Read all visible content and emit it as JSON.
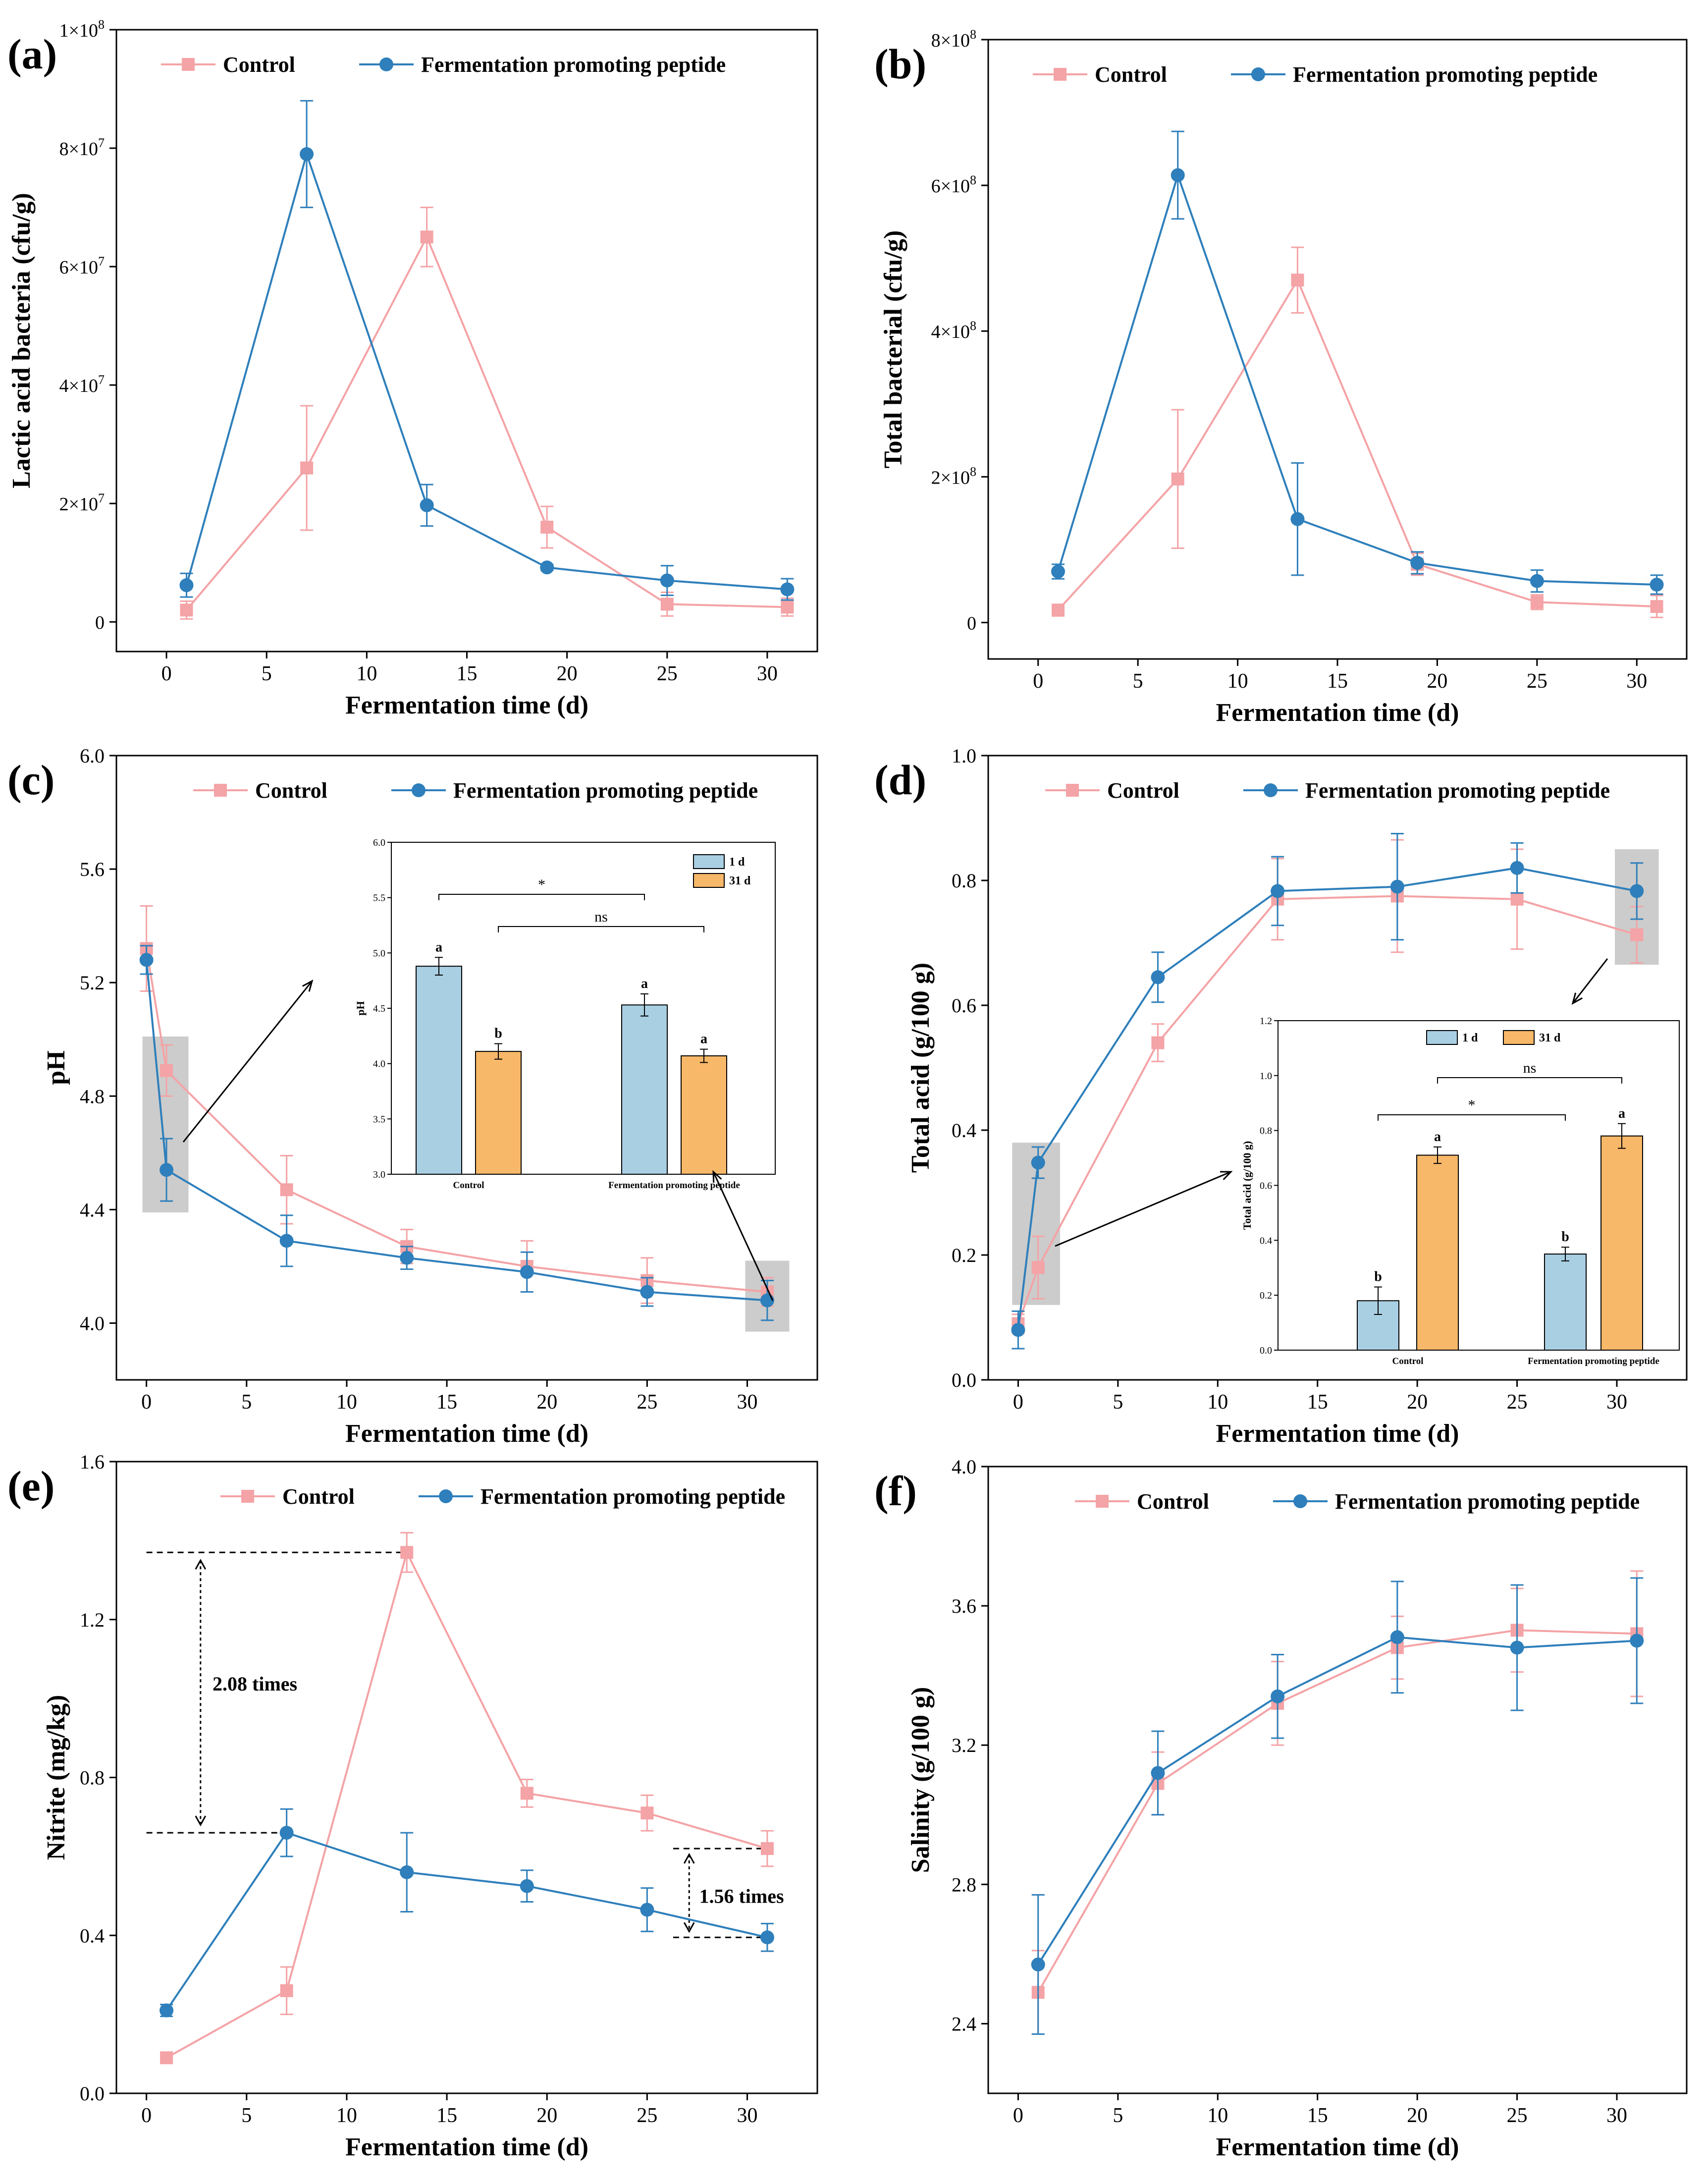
{
  "colors": {
    "control": "#f4a3a6",
    "peptide": "#2e7fbb",
    "inset_bar_1d": "#a9cfe3",
    "inset_bar_31d": "#f8b869",
    "highlight": "#cccccc",
    "axis": "#000000"
  },
  "chart_data": [
    {
      "panel": "(a)",
      "type": "line",
      "title": "",
      "xlabel": "Fermentation time (d)",
      "ylabel": "Lactic acid bacteria (cfu/g)",
      "xlim": [
        -2.5,
        32.5
      ],
      "ylim": [
        -5000000,
        100000000
      ],
      "xticks": [
        0,
        5,
        10,
        15,
        20,
        25,
        30
      ],
      "xtick_labels": [
        "0",
        "5",
        "10",
        "15",
        "20",
        "25",
        "30"
      ],
      "yticks": [
        0,
        20000000,
        40000000,
        60000000,
        80000000,
        100000000
      ],
      "ytick_labels": [
        {
          "base": "0",
          "exp": ""
        },
        {
          "base": "2×10",
          "exp": "7"
        },
        {
          "base": "4×10",
          "exp": "7"
        },
        {
          "base": "6×10",
          "exp": "7"
        },
        {
          "base": "8×10",
          "exp": "7"
        },
        {
          "base": "1×10",
          "exp": "8"
        }
      ],
      "legend": {
        "position": "top",
        "labels": [
          "Control",
          "Fermentation promoting peptide"
        ]
      },
      "series": [
        {
          "name": "Control",
          "marker": "square",
          "x": [
            1,
            7,
            13,
            19,
            25,
            31
          ],
          "y": [
            2000000,
            26000000,
            65000000,
            16000000,
            3000000,
            2500000
          ],
          "err": [
            1500000,
            10500000,
            5000000,
            3500000,
            2000000,
            1500000
          ]
        },
        {
          "name": "Fermentation promoting peptide",
          "marker": "circle",
          "x": [
            1,
            7,
            13,
            19,
            25,
            31
          ],
          "y": [
            6200000,
            79000000,
            19700000,
            9200000,
            7000000,
            5500000
          ],
          "err": [
            2000000,
            9000000,
            3500000,
            500000,
            2500000,
            1800000
          ]
        }
      ]
    },
    {
      "panel": "(b)",
      "type": "line",
      "title": "",
      "xlabel": "Fermentation time (d)",
      "ylabel": "Total bacterial (cfu/g)",
      "xlim": [
        -2.5,
        32.5
      ],
      "ylim": [
        -50000000,
        800000000
      ],
      "xticks": [
        0,
        5,
        10,
        15,
        20,
        25,
        30
      ],
      "xtick_labels": [
        "0",
        "5",
        "10",
        "15",
        "20",
        "25",
        "30"
      ],
      "yticks": [
        0,
        200000000,
        400000000,
        600000000,
        800000000
      ],
      "ytick_labels": [
        {
          "base": "0",
          "exp": ""
        },
        {
          "base": "2×10",
          "exp": "8"
        },
        {
          "base": "4×10",
          "exp": "8"
        },
        {
          "base": "6×10",
          "exp": "8"
        },
        {
          "base": "8×10",
          "exp": "8"
        }
      ],
      "legend": {
        "position": "top",
        "labels": [
          "Control",
          "Fermentation promoting peptide"
        ]
      },
      "series": [
        {
          "name": "Control",
          "marker": "square",
          "x": [
            1,
            7,
            13,
            19,
            25,
            31
          ],
          "y": [
            17000000,
            197000000,
            470000000,
            80000000,
            28000000,
            22000000
          ],
          "err": [
            8000000,
            95000000,
            45000000,
            15000000,
            10000000,
            15000000
          ]
        },
        {
          "name": "Fermentation promoting peptide",
          "marker": "circle",
          "x": [
            1,
            7,
            13,
            19,
            25,
            31
          ],
          "y": [
            70000000,
            614000000,
            142000000,
            82000000,
            57000000,
            52000000
          ],
          "err": [
            10000000,
            60000000,
            77000000,
            15000000,
            15000000,
            13000000
          ]
        }
      ]
    },
    {
      "panel": "(c)",
      "type": "line",
      "title": "",
      "xlabel": "Fermentation time (d)",
      "ylabel": "pH",
      "xlim": [
        -1.5,
        33.5
      ],
      "ylim": [
        3.8,
        6.0
      ],
      "xticks": [
        0,
        5,
        10,
        15,
        20,
        25,
        30
      ],
      "xtick_labels": [
        "0",
        "5",
        "10",
        "15",
        "20",
        "25",
        "30"
      ],
      "yticks": [
        4.0,
        4.4,
        4.8,
        5.2,
        5.6,
        6.0
      ],
      "ytick_labels": [
        "4.0",
        "4.4",
        "4.8",
        "5.2",
        "5.6",
        "6.0"
      ],
      "legend": {
        "position": "top",
        "labels": [
          "Control",
          "Fermentation promoting peptide"
        ]
      },
      "series": [
        {
          "name": "Control",
          "marker": "square",
          "x": [
            0,
            1,
            7,
            13,
            19,
            25,
            31
          ],
          "y": [
            5.32,
            4.89,
            4.47,
            4.27,
            4.2,
            4.15,
            4.11
          ],
          "err": [
            0.15,
            0.09,
            0.12,
            0.06,
            0.09,
            0.08,
            0.05
          ]
        },
        {
          "name": "Fermentation promoting peptide",
          "marker": "circle",
          "x": [
            0,
            1,
            7,
            13,
            19,
            25,
            31
          ],
          "y": [
            5.28,
            4.54,
            4.29,
            4.23,
            4.18,
            4.11,
            4.08
          ],
          "err": [
            0.05,
            0.11,
            0.09,
            0.04,
            0.07,
            0.05,
            0.07
          ]
        }
      ],
      "inset": {
        "type": "bar",
        "ylabel": "pH",
        "ylim": [
          3.0,
          6.0
        ],
        "yticks": [
          "3.0",
          "3.5",
          "4.0",
          "4.5",
          "5.0",
          "5.5",
          "6.0"
        ],
        "categories": [
          "Control",
          "Fermentation promoting peptide"
        ],
        "series": [
          {
            "name": "1 d",
            "values": [
              4.88,
              4.53
            ],
            "err": [
              0.08,
              0.1
            ],
            "letters": [
              "a",
              "a"
            ]
          },
          {
            "name": "31 d",
            "values": [
              4.11,
              4.07
            ],
            "err": [
              0.07,
              0.06
            ],
            "letters": [
              "b",
              "a"
            ]
          }
        ],
        "significance": [
          "*",
          "ns"
        ]
      }
    },
    {
      "panel": "(d)",
      "type": "line",
      "title": "",
      "xlabel": "Fermentation time (d)",
      "ylabel": "Total acid (g/100 g)",
      "xlim": [
        -1.5,
        33.5
      ],
      "ylim": [
        0.0,
        1.0
      ],
      "xticks": [
        0,
        5,
        10,
        15,
        20,
        25,
        30
      ],
      "xtick_labels": [
        "0",
        "5",
        "10",
        "15",
        "20",
        "25",
        "30"
      ],
      "yticks": [
        0.0,
        0.2,
        0.4,
        0.6,
        0.8,
        1.0
      ],
      "ytick_labels": [
        "0.0",
        "0.2",
        "0.4",
        "0.6",
        "0.8",
        "1.0"
      ],
      "legend": {
        "position": "top",
        "labels": [
          "Control",
          "Fermentation promoting peptide"
        ]
      },
      "series": [
        {
          "name": "Control",
          "marker": "square",
          "x": [
            0,
            1,
            7,
            13,
            19,
            25,
            31
          ],
          "y": [
            0.09,
            0.18,
            0.54,
            0.77,
            0.775,
            0.77,
            0.713
          ],
          "err": [
            0.015,
            0.05,
            0.03,
            0.065,
            0.09,
            0.08,
            0.045
          ]
        },
        {
          "name": "Fermentation promoting peptide",
          "marker": "circle",
          "x": [
            0,
            1,
            7,
            13,
            19,
            25,
            31
          ],
          "y": [
            0.08,
            0.348,
            0.645,
            0.783,
            0.79,
            0.82,
            0.783
          ],
          "err": [
            0.03,
            0.025,
            0.04,
            0.055,
            0.085,
            0.04,
            0.045
          ]
        }
      ],
      "inset": {
        "type": "bar",
        "ylabel": "Total acid (g/100 g)",
        "ylim": [
          0.0,
          1.2
        ],
        "yticks": [
          "0.0",
          "0.2",
          "0.4",
          "0.6",
          "0.8",
          "1.0",
          "1.2"
        ],
        "categories": [
          "Control",
          "Fermentation promoting peptide"
        ],
        "series": [
          {
            "name": "1 d",
            "values": [
              0.18,
              0.35
            ],
            "err": [
              0.05,
              0.025
            ],
            "letters": [
              "b",
              "b"
            ]
          },
          {
            "name": "31 d",
            "values": [
              0.71,
              0.78
            ],
            "err": [
              0.03,
              0.045
            ],
            "letters": [
              "a",
              "a"
            ]
          }
        ],
        "significance": [
          "*",
          "ns"
        ]
      }
    },
    {
      "panel": "(e)",
      "type": "line",
      "title": "",
      "xlabel": "Fermentation time (d)",
      "ylabel": "Nitrite (mg/kg)",
      "xlim": [
        -1.5,
        33.5
      ],
      "ylim": [
        0.0,
        1.6
      ],
      "xticks": [
        0,
        5,
        10,
        15,
        20,
        25,
        30
      ],
      "xtick_labels": [
        "0",
        "5",
        "10",
        "15",
        "20",
        "25",
        "30"
      ],
      "yticks": [
        0.0,
        0.4,
        0.8,
        1.2,
        1.6
      ],
      "ytick_labels": [
        "0.0",
        "0.4",
        "0.8",
        "1.2",
        "1.6"
      ],
      "legend": {
        "position": "top",
        "labels": [
          "Control",
          "Fermentation promoting peptide"
        ]
      },
      "series": [
        {
          "name": "Control",
          "marker": "square",
          "x": [
            1,
            7,
            13,
            19,
            25,
            31
          ],
          "y": [
            0.09,
            0.26,
            1.37,
            0.76,
            0.71,
            0.62
          ],
          "err": [
            0.01,
            0.06,
            0.05,
            0.035,
            0.045,
            0.045
          ]
        },
        {
          "name": "Fermentation promoting peptide",
          "marker": "circle",
          "x": [
            1,
            7,
            13,
            19,
            25,
            31
          ],
          "y": [
            0.21,
            0.66,
            0.56,
            0.525,
            0.465,
            0.395
          ],
          "err": [
            0.015,
            0.06,
            0.1,
            0.04,
            0.055,
            0.035
          ]
        }
      ],
      "annotations": [
        "2.08 times",
        "1.56 times"
      ]
    },
    {
      "panel": "(f)",
      "type": "line",
      "title": "",
      "xlabel": "Fermentation time (d)",
      "ylabel": "Salinity (g/100 g)",
      "xlim": [
        -1.5,
        33.5
      ],
      "ylim": [
        2.2,
        4.0
      ],
      "xticks": [
        0,
        5,
        10,
        15,
        20,
        25,
        30
      ],
      "xtick_labels": [
        "0",
        "5",
        "10",
        "15",
        "20",
        "25",
        "30"
      ],
      "yticks": [
        2.4,
        2.8,
        3.2,
        3.6,
        4.0
      ],
      "ytick_labels": [
        "2.4",
        "2.8",
        "3.2",
        "3.6",
        "4.0"
      ],
      "legend": {
        "position": "top",
        "labels": [
          "Control",
          "Fermentation promoting peptide"
        ]
      },
      "series": [
        {
          "name": "Control",
          "marker": "square",
          "x": [
            1,
            7,
            13,
            19,
            25,
            31
          ],
          "y": [
            2.49,
            3.09,
            3.32,
            3.48,
            3.53,
            3.52
          ],
          "err": [
            0.12,
            0.09,
            0.12,
            0.09,
            0.12,
            0.18
          ]
        },
        {
          "name": "Fermentation promoting peptide",
          "marker": "circle",
          "x": [
            1,
            7,
            13,
            19,
            25,
            31
          ],
          "y": [
            2.57,
            3.12,
            3.34,
            3.51,
            3.48,
            3.5
          ],
          "err": [
            0.2,
            0.12,
            0.12,
            0.16,
            0.18,
            0.18
          ]
        }
      ]
    }
  ]
}
